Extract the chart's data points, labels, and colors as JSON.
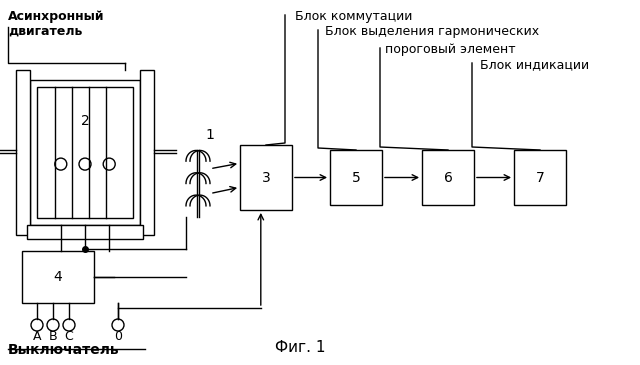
{
  "bg_color": "#ffffff",
  "title": "Фиг. 1",
  "label_async_motor": "Асинхронный\nдвигатель",
  "label_switch": "Выключатель",
  "label_block_comm": "Блок коммутации",
  "label_block_harm": "Блок выделения гармонических",
  "label_threshold": "пороговый элемент",
  "label_indication": "Блок индикации",
  "labels_abc": [
    "A",
    "B",
    "C",
    "0"
  ]
}
